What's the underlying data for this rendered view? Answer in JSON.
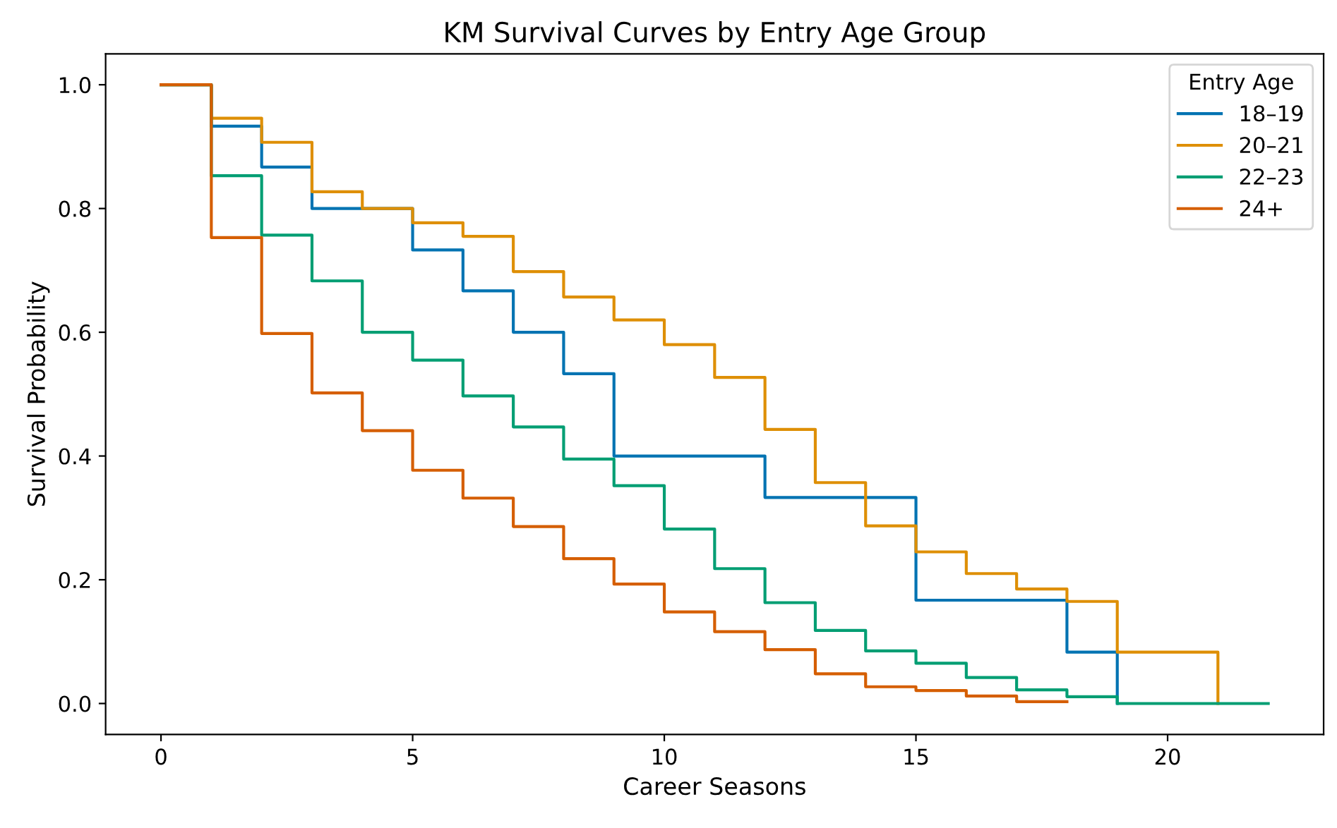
{
  "chart_data": {
    "type": "step",
    "title": "KM Survival Curves by Entry Age Group",
    "xlabel": "Career Seasons",
    "ylabel": "Survival Probability",
    "legend_title": "Entry Age",
    "legend": "top right",
    "grid": false,
    "xlim": [
      -1.1,
      23.1
    ],
    "ylim": [
      -0.05,
      1.05
    ],
    "xticks": [
      0,
      5,
      10,
      15,
      20
    ],
    "yticks": [
      {
        "value": 0,
        "label": "0.0"
      },
      {
        "value": 0.2,
        "label": "0.2"
      },
      {
        "value": 0.4,
        "label": "0.4"
      },
      {
        "value": 0.6,
        "label": "0.6"
      },
      {
        "value": 0.8,
        "label": "0.8"
      },
      {
        "value": 1.0,
        "label": "1.0"
      }
    ],
    "series": [
      {
        "name": "18–19",
        "color": "#0173b2",
        "x": [
          0,
          1,
          2,
          3,
          4,
          5,
          6,
          7,
          8,
          9,
          10,
          11,
          12,
          13,
          14,
          15,
          16,
          17,
          18,
          19
        ],
        "values": [
          1.0,
          0.933,
          0.867,
          0.8,
          0.8,
          0.733,
          0.667,
          0.6,
          0.533,
          0.4,
          0.4,
          0.4,
          0.333,
          0.333,
          0.333,
          0.167,
          0.167,
          0.167,
          0.083,
          0.0
        ]
      },
      {
        "name": "20–21",
        "color": "#de8f05",
        "x": [
          0,
          1,
          2,
          3,
          4,
          5,
          6,
          7,
          8,
          9,
          10,
          11,
          12,
          13,
          14,
          15,
          16,
          17,
          18,
          19,
          20,
          21
        ],
        "values": [
          1.0,
          0.946,
          0.907,
          0.827,
          0.8,
          0.777,
          0.755,
          0.698,
          0.657,
          0.62,
          0.58,
          0.527,
          0.443,
          0.357,
          0.287,
          0.245,
          0.21,
          0.185,
          0.165,
          0.083,
          0.083,
          0.0
        ]
      },
      {
        "name": "22–23",
        "color": "#029e73",
        "x": [
          0,
          1,
          2,
          3,
          4,
          5,
          6,
          7,
          8,
          9,
          10,
          11,
          12,
          13,
          14,
          15,
          16,
          17,
          18,
          19,
          20,
          21,
          22
        ],
        "values": [
          1.0,
          0.853,
          0.757,
          0.683,
          0.6,
          0.555,
          0.497,
          0.447,
          0.395,
          0.352,
          0.282,
          0.218,
          0.163,
          0.118,
          0.085,
          0.065,
          0.042,
          0.022,
          0.011,
          0.0,
          0.0,
          0.0,
          0.0
        ]
      },
      {
        "name": "24+",
        "color": "#d55e00",
        "x": [
          0,
          1,
          2,
          3,
          4,
          5,
          6,
          7,
          8,
          9,
          10,
          11,
          12,
          13,
          14,
          15,
          16,
          17,
          18
        ],
        "values": [
          1.0,
          0.753,
          0.598,
          0.502,
          0.441,
          0.377,
          0.332,
          0.286,
          0.234,
          0.193,
          0.148,
          0.116,
          0.087,
          0.048,
          0.027,
          0.021,
          0.012,
          0.003,
          0.003
        ]
      }
    ]
  }
}
